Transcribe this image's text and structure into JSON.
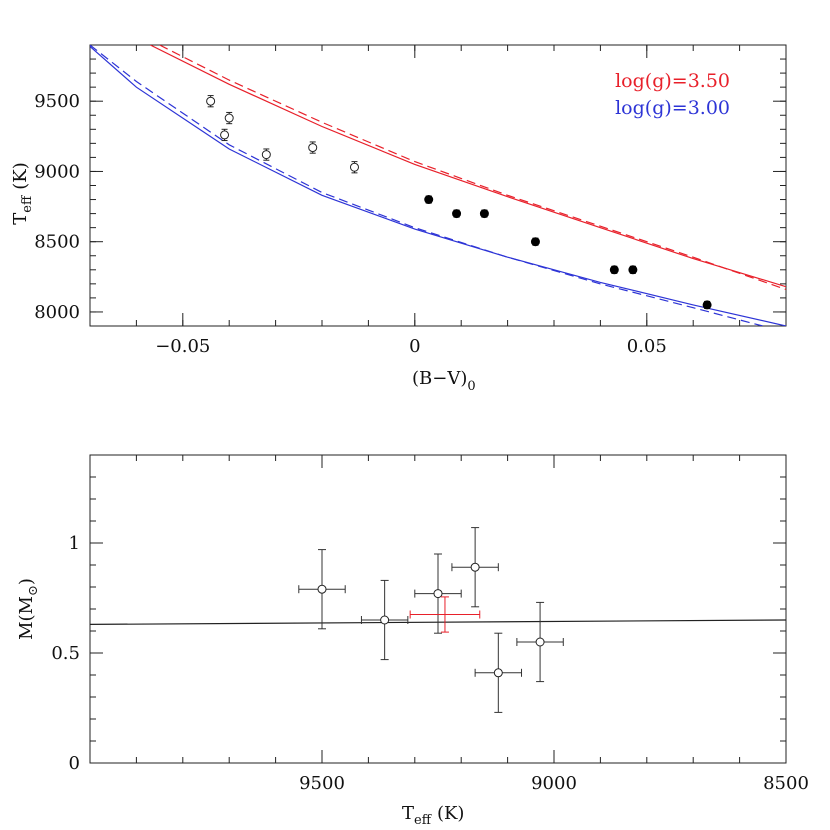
{
  "chart_data": [
    {
      "type": "scatter",
      "xlabel": "(B−V)",
      "xlabel_sub": "0",
      "ylabel": "T",
      "ylabel_sub": "eff",
      "ylabel_unit": "(K)",
      "xlim": [
        -0.07,
        0.08
      ],
      "ylim": [
        7900,
        9900
      ],
      "xticks": [
        {
          "value": -0.05,
          "label": "−0.05"
        },
        {
          "value": 0,
          "label": "0"
        },
        {
          "value": 0.05,
          "label": "0.05"
        }
      ],
      "yticks": [
        {
          "value": 8000,
          "label": "8000"
        },
        {
          "value": 8500,
          "label": "8500"
        },
        {
          "value": 9000,
          "label": "9000"
        },
        {
          "value": 9500,
          "label": "9500"
        }
      ],
      "minor_x_step": 0.01,
      "minor_y_step": 100,
      "legend_position": "top-right",
      "curves": [
        {
          "name": "log(g)=3.50",
          "style": "solid",
          "color": "#e8202a",
          "x": [
            -0.057,
            -0.04,
            -0.02,
            0,
            0.02,
            0.04,
            0.06,
            0.08
          ],
          "y": [
            9900,
            9620,
            9320,
            9050,
            8820,
            8600,
            8380,
            8180
          ]
        },
        {
          "name": "",
          "style": "dashed",
          "color": "#e8202a",
          "x": [
            -0.055,
            -0.04,
            -0.02,
            0,
            0.02,
            0.04,
            0.06,
            0.08
          ],
          "y": [
            9900,
            9650,
            9350,
            9070,
            8830,
            8610,
            8390,
            8160
          ]
        },
        {
          "name": "log(g)=3.00",
          "style": "solid",
          "color": "#2d34d6",
          "x": [
            -0.07,
            -0.06,
            -0.04,
            -0.02,
            0,
            0.02,
            0.04,
            0.06,
            0.08
          ],
          "y": [
            9890,
            9600,
            9160,
            8830,
            8590,
            8390,
            8210,
            8050,
            7900
          ]
        },
        {
          "name": "",
          "style": "dashed",
          "color": "#2d34d6",
          "x": [
            -0.07,
            -0.06,
            -0.04,
            -0.02,
            0,
            0.02,
            0.04,
            0.06,
            0.075
          ],
          "y": [
            9900,
            9640,
            9190,
            8850,
            8600,
            8390,
            8200,
            8030,
            7900
          ]
        }
      ],
      "points_open": [
        {
          "x": -0.044,
          "y": 9500,
          "err": 40
        },
        {
          "x": -0.041,
          "y": 9260,
          "err": 40
        },
        {
          "x": -0.04,
          "y": 9380,
          "err": 40
        },
        {
          "x": -0.032,
          "y": 9120,
          "err": 40
        },
        {
          "x": -0.022,
          "y": 9170,
          "err": 40
        },
        {
          "x": -0.013,
          "y": 9030,
          "err": 40
        }
      ],
      "points_filled": [
        {
          "x": 0.003,
          "y": 8800,
          "err": 25
        },
        {
          "x": 0.009,
          "y": 8700,
          "err": 25
        },
        {
          "x": 0.015,
          "y": 8700,
          "err": 25
        },
        {
          "x": 0.026,
          "y": 8500,
          "err": 25
        },
        {
          "x": 0.043,
          "y": 8300,
          "err": 25
        },
        {
          "x": 0.047,
          "y": 8300,
          "err": 25
        },
        {
          "x": 0.063,
          "y": 8050,
          "err": 25
        }
      ]
    },
    {
      "type": "scatter",
      "xlabel": "T",
      "xlabel_sub": "eff",
      "xlabel_unit": "(K)",
      "ylabel": "M(M",
      "ylabel_symbol": "⊙",
      "ylabel_end": ")",
      "xlim": [
        10000,
        8500
      ],
      "ylim": [
        0,
        1.4
      ],
      "xticks": [
        {
          "value": 9500,
          "label": "9500"
        },
        {
          "value": 9000,
          "label": "9000"
        },
        {
          "value": 8500,
          "label": "8500"
        }
      ],
      "yticks": [
        {
          "value": 0,
          "label": "0"
        },
        {
          "value": 0.5,
          "label": "0.5"
        },
        {
          "value": 1,
          "label": "1"
        }
      ],
      "minor_x_step": 100,
      "minor_y_step": 0.1,
      "fit_line": {
        "x": [
          10000,
          8500
        ],
        "y": [
          0.63,
          0.65
        ],
        "color": "#222"
      },
      "points": [
        {
          "x": 9500,
          "y": 0.79,
          "xerr": 50,
          "yerr": 0.18
        },
        {
          "x": 9365,
          "y": 0.65,
          "xerr": 50,
          "yerr": 0.18
        },
        {
          "x": 9250,
          "y": 0.77,
          "xerr": 50,
          "yerr": 0.18
        },
        {
          "x": 9170,
          "y": 0.89,
          "xerr": 50,
          "yerr": 0.18
        },
        {
          "x": 9120,
          "y": 0.41,
          "xerr": 50,
          "yerr": 0.18
        },
        {
          "x": 9030,
          "y": 0.55,
          "xerr": 50,
          "yerr": 0.18
        }
      ],
      "mean_point": {
        "x": 9235,
        "y": 0.675,
        "xerr": 75,
        "yerr": 0.08,
        "color": "#e8202a"
      }
    }
  ]
}
